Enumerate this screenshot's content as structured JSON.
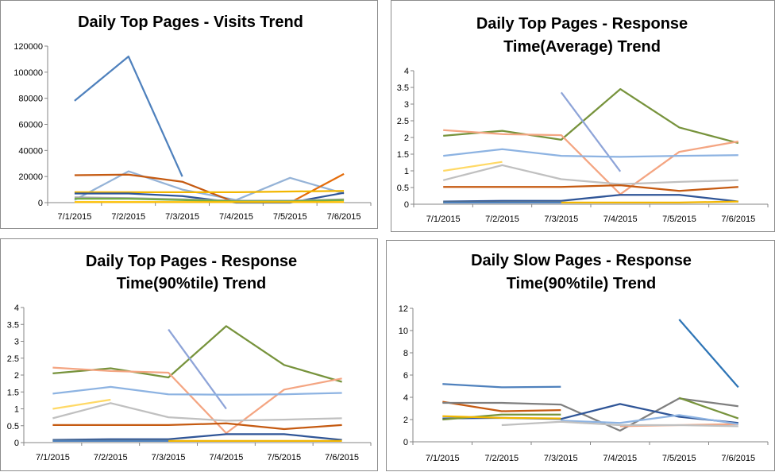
{
  "chart_data": [
    {
      "type": "line",
      "title_lines": [
        "Daily Top Pages - Visits Trend"
      ],
      "categories": [
        "7/1/2015",
        "7/2/2015",
        "7/3/2015",
        "7/4/2015",
        "7/5/2015",
        "7/6/2015"
      ],
      "yticks": [
        "0",
        "20000",
        "40000",
        "60000",
        "80000",
        "100000",
        "120000"
      ],
      "ylim": [
        0,
        120000
      ],
      "grid": false,
      "series": [
        {
          "color": "#4f81bd",
          "values": [
            78000,
            112000,
            20000,
            null,
            null,
            null
          ]
        },
        {
          "color": "#95b3d7",
          "values": [
            2000,
            24000,
            10000,
            2000,
            19000,
            7000
          ]
        },
        {
          "color": "#c55a11",
          "values": [
            21000,
            21500,
            16000,
            0,
            null,
            null
          ]
        },
        {
          "color": "#e46c0a",
          "values": [
            null,
            null,
            null,
            null,
            0,
            22000
          ]
        },
        {
          "color": "#f2b600",
          "values": [
            8000,
            8000,
            8000,
            8000,
            8500,
            9000
          ]
        },
        {
          "color": "#2f5597",
          "values": [
            7000,
            7000,
            5000,
            0,
            0,
            7500
          ]
        },
        {
          "color": "#a5a5a5",
          "values": [
            4000,
            3500,
            2500,
            1500,
            1500,
            2500
          ]
        },
        {
          "color": "#70ad47",
          "values": [
            3000,
            3000,
            2000,
            1000,
            1000,
            2000
          ]
        },
        {
          "color": "#ffc000",
          "values": [
            500,
            500,
            500,
            500,
            500,
            500
          ]
        }
      ]
    },
    {
      "type": "line",
      "title_lines": [
        "Daily Top Pages - Response",
        "Time(Average) Trend"
      ],
      "categories": [
        "7/1/2015",
        "7/2/2015",
        "7/3/2015",
        "7/4/2015",
        "7/5/2015",
        "7/6/2015"
      ],
      "yticks": [
        "0",
        "0.5",
        "1",
        "1.5",
        "2",
        "2.5",
        "3",
        "3.5",
        "4"
      ],
      "ylim": [
        0,
        4
      ],
      "grid": false,
      "series": [
        {
          "color": "#77933c",
          "values": [
            2.05,
            2.2,
            1.93,
            3.45,
            2.3,
            1.83
          ]
        },
        {
          "color": "#f4a582",
          "values": [
            2.22,
            2.1,
            2.07,
            0.3,
            1.57,
            1.88
          ]
        },
        {
          "color": "#8ea4d8",
          "values": [
            null,
            null,
            3.35,
            0.98,
            null,
            null
          ]
        },
        {
          "color": "#8db3e2",
          "values": [
            1.45,
            1.65,
            1.45,
            1.42,
            1.45,
            1.47
          ]
        },
        {
          "color": "#c0c0c0",
          "values": [
            0.72,
            1.17,
            0.75,
            0.6,
            0.67,
            0.72
          ]
        },
        {
          "color": "#ffd966",
          "values": [
            1.0,
            1.27,
            null,
            null,
            null,
            null
          ]
        },
        {
          "color": "#c55a11",
          "values": [
            0.52,
            0.52,
            0.52,
            0.57,
            0.4,
            0.52
          ]
        },
        {
          "color": "#2f5597",
          "values": [
            0.08,
            0.1,
            0.1,
            0.28,
            0.28,
            0.08
          ]
        },
        {
          "color": "#f2b600",
          "values": [
            0.05,
            0.05,
            0.05,
            0.05,
            0.05,
            0.08
          ]
        },
        {
          "color": "#4f81bd",
          "values": [
            0.05,
            0.05,
            0.05,
            null,
            null,
            null
          ]
        }
      ]
    },
    {
      "type": "line",
      "title_lines": [
        "Daily Top Pages - Response",
        "Time(90%tile) Trend"
      ],
      "categories": [
        "7/1/2015",
        "7/2/2015",
        "7/3/2015",
        "7/4/2015",
        "7/5/2015",
        "7/6/2015"
      ],
      "yticks": [
        "0",
        "0.5",
        "1",
        "1.5",
        "2",
        "2.5",
        "3",
        "3.5",
        "4"
      ],
      "ylim": [
        0,
        4
      ],
      "grid": false,
      "series": [
        {
          "color": "#77933c",
          "values": [
            2.05,
            2.2,
            1.93,
            3.45,
            2.3,
            1.8
          ]
        },
        {
          "color": "#f4a582",
          "values": [
            2.22,
            2.12,
            2.07,
            0.28,
            1.57,
            1.9
          ]
        },
        {
          "color": "#8ea4d8",
          "values": [
            null,
            null,
            3.35,
            1.0,
            null,
            null
          ]
        },
        {
          "color": "#8db3e2",
          "values": [
            1.45,
            1.65,
            1.43,
            1.42,
            1.43,
            1.47
          ]
        },
        {
          "color": "#c0c0c0",
          "values": [
            0.72,
            1.17,
            0.75,
            0.65,
            0.68,
            0.72
          ]
        },
        {
          "color": "#ffd966",
          "values": [
            1.0,
            1.27,
            null,
            null,
            null,
            null
          ]
        },
        {
          "color": "#c55a11",
          "values": [
            0.52,
            0.52,
            0.52,
            0.57,
            0.4,
            0.52
          ]
        },
        {
          "color": "#2f5597",
          "values": [
            0.08,
            0.1,
            0.1,
            0.25,
            0.25,
            0.08
          ]
        },
        {
          "color": "#f2b600",
          "values": [
            0.05,
            0.05,
            0.05,
            0.05,
            0.05,
            0.05
          ]
        },
        {
          "color": "#4f81bd",
          "values": [
            0.05,
            0.05,
            0.05,
            null,
            null,
            null
          ]
        }
      ]
    },
    {
      "type": "line",
      "title_lines": [
        "Daily Slow Pages - Response",
        "Time(90%tile) Trend"
      ],
      "categories": [
        "7/1/2015",
        "7/2/2015",
        "7/3/2015",
        "7/4/2015",
        "7/5/2015",
        "7/6/2015"
      ],
      "yticks": [
        "0",
        "2",
        "4",
        "6",
        "8",
        "10",
        "12"
      ],
      "ylim": [
        0,
        12
      ],
      "grid": false,
      "series": [
        {
          "color": "#4f81bd",
          "values": [
            5.2,
            4.9,
            4.95,
            null,
            null,
            null
          ]
        },
        {
          "color": "#2e75b6",
          "values": [
            null,
            null,
            null,
            null,
            11.0,
            4.9
          ]
        },
        {
          "color": "#c55a11",
          "values": [
            3.6,
            2.75,
            2.85,
            null,
            null,
            null
          ]
        },
        {
          "color": "#7f7f7f",
          "values": [
            3.5,
            3.5,
            3.35,
            1.0,
            3.9,
            3.2
          ]
        },
        {
          "color": "#2f5597",
          "values": [
            2.1,
            2.15,
            2.05,
            3.4,
            2.25,
            1.7
          ]
        },
        {
          "color": "#77933c",
          "values": [
            2.0,
            2.45,
            2.45,
            null,
            3.95,
            2.1
          ]
        },
        {
          "color": "#f2b600",
          "values": [
            2.3,
            2.15,
            2.1,
            null,
            null,
            null
          ]
        },
        {
          "color": "#f4a582",
          "values": [
            null,
            null,
            null,
            1.4,
            1.5,
            1.6
          ]
        },
        {
          "color": "#8db3e2",
          "values": [
            null,
            null,
            1.9,
            1.7,
            2.4,
            1.6
          ]
        },
        {
          "color": "#c0c0c0",
          "values": [
            null,
            1.5,
            1.8,
            1.5,
            1.5,
            1.4
          ]
        }
      ]
    }
  ]
}
